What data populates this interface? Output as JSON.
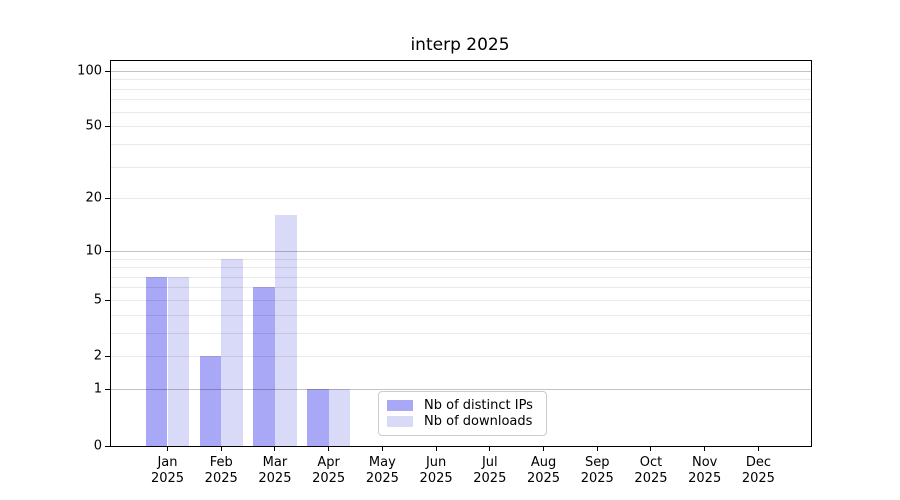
{
  "chart_data": {
    "type": "bar",
    "title": "interp 2025",
    "categories": [
      "Jan",
      "Feb",
      "Mar",
      "Apr",
      "May",
      "Jun",
      "Jul",
      "Aug",
      "Sep",
      "Oct",
      "Nov",
      "Dec"
    ],
    "category_year": "2025",
    "series": [
      {
        "name": "Nb of distinct IPs",
        "color": "#a8a8f7",
        "values": [
          7,
          2,
          6,
          1,
          0,
          0,
          0,
          0,
          0,
          0,
          0,
          0
        ]
      },
      {
        "name": "Nb of downloads",
        "color": "#d9d9f8",
        "values": [
          7,
          9,
          16,
          1,
          0,
          0,
          0,
          0,
          0,
          0,
          0,
          0
        ]
      }
    ],
    "xlabel": "",
    "ylabel": "",
    "yscale": "log1p",
    "ylim": [
      0,
      113
    ],
    "y_tick_values": [
      0,
      1,
      2,
      5,
      10,
      20,
      50,
      100
    ],
    "y_tick_labels": [
      "0",
      "1",
      "2",
      "5",
      "10",
      "20",
      "50",
      "100"
    ],
    "y_major_gridlines": [
      1,
      10,
      100
    ],
    "y_minor_gridlines": [
      2,
      3,
      4,
      5,
      6,
      7,
      8,
      9,
      20,
      30,
      40,
      50,
      60,
      70,
      80,
      90
    ],
    "grid": true,
    "legend_position": "lower center"
  },
  "colors": {
    "background": "#ffffff",
    "axis": "#000000",
    "grid_major": "#c3c3c3",
    "grid_minor": "#e9e9e9",
    "legend_border": "#cccccc"
  }
}
